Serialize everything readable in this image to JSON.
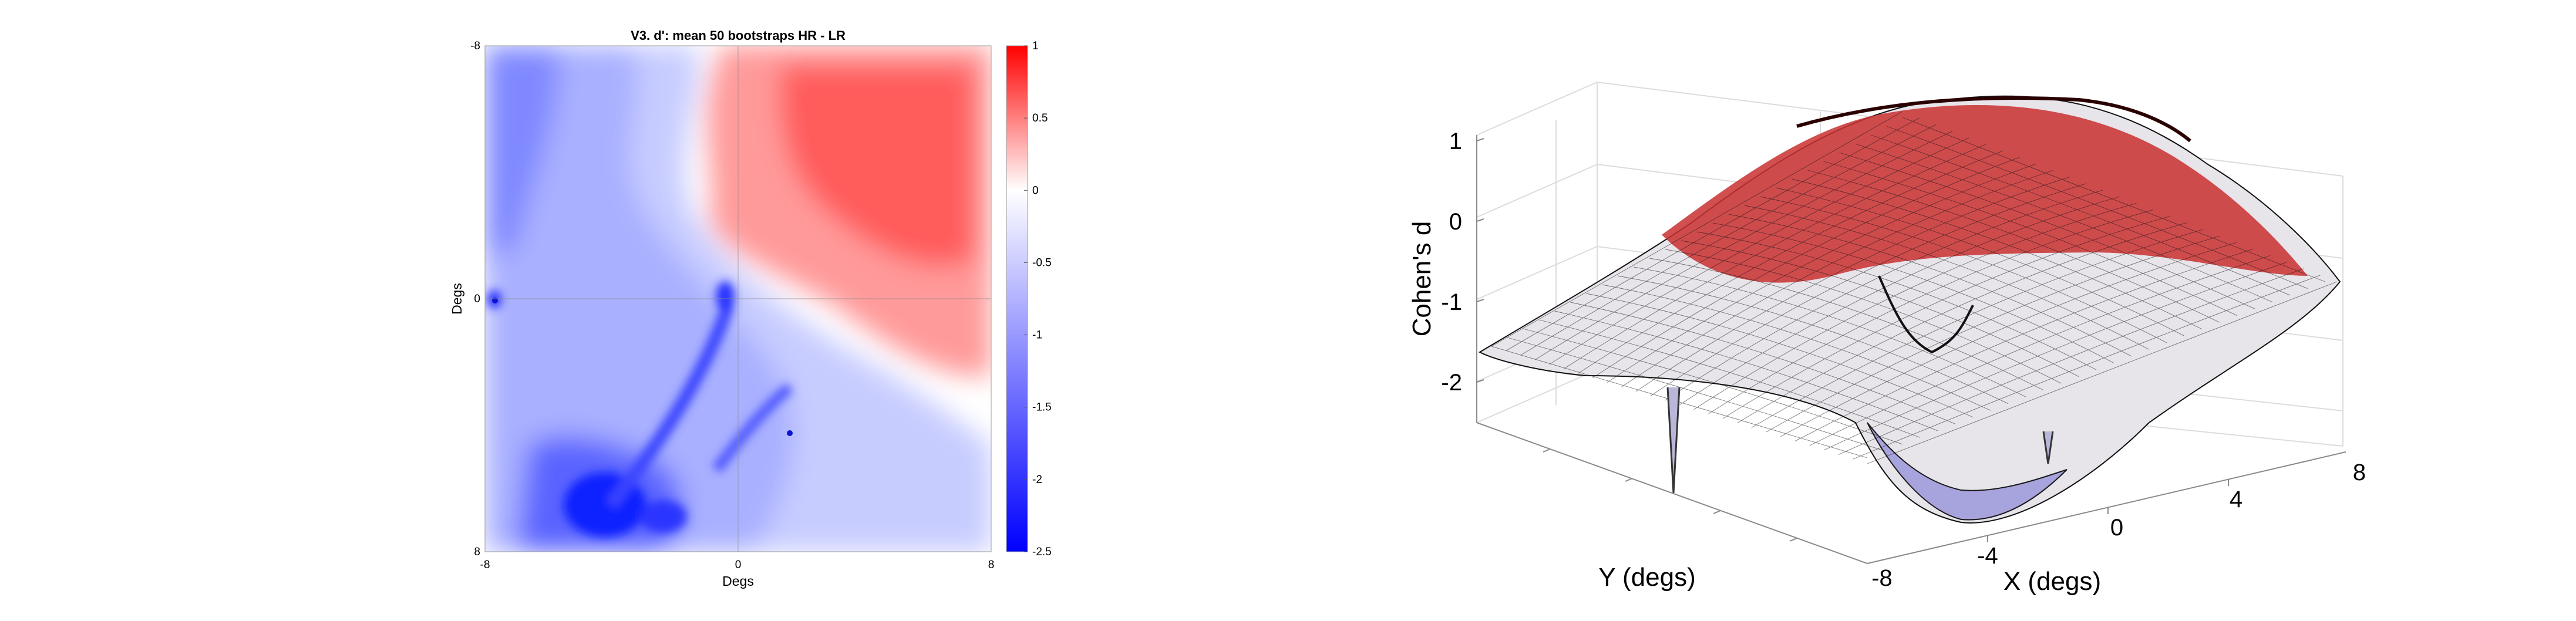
{
  "chart_data": [
    {
      "type": "heatmap",
      "title": "V3. d': mean 50 bootstraps HR - LR",
      "xlabel": "Degs",
      "ylabel": "Degs",
      "x_ticks": [
        "-8",
        "0",
        "8"
      ],
      "y_ticks": [
        "-8",
        "0",
        "8"
      ],
      "xlim": [
        -8,
        8
      ],
      "ylim": [
        -8,
        8
      ],
      "y_direction": "reverse",
      "grid": true,
      "colorbar": {
        "position": "right",
        "range": [
          -2.5,
          1
        ],
        "ticks": [
          "1",
          "0.5",
          "0",
          "-0.5",
          "-1",
          "-1.5",
          "-2",
          "-2.5"
        ],
        "colormap": [
          "#0000ff",
          "#ffffff",
          "#ff0000"
        ]
      },
      "features": {
        "positive_peak": {
          "x": 4.5,
          "y": -5.5,
          "value": 0.85
        },
        "negative_lobes": [
          {
            "x": -4,
            "y": 6.3,
            "value": -2.5
          },
          {
            "x": -7.5,
            "y": 0.2,
            "value": -2.1
          },
          {
            "x": -0.3,
            "y": 0.1,
            "value": -1.8
          },
          {
            "x": 1.7,
            "y": 4.3,
            "value": -2.2
          }
        ]
      }
    },
    {
      "type": "surface3d",
      "zlabel": "Cohen's d",
      "xlabel": "X (degs)",
      "ylabel": "Y (degs)",
      "z_ticks": [
        "1",
        "0",
        "-1",
        "-2"
      ],
      "x_ticks": [
        "-4",
        "0",
        "4",
        "8"
      ],
      "y_ticks": [
        "-8"
      ],
      "xlim": [
        -8,
        8
      ],
      "ylim": [
        -8,
        8
      ],
      "zlim": [
        -2.5,
        1
      ],
      "grid": true,
      "colormap": [
        "#0000ff",
        "#ffffff",
        "#ff0000"
      ],
      "edge_color": "#000000"
    }
  ]
}
